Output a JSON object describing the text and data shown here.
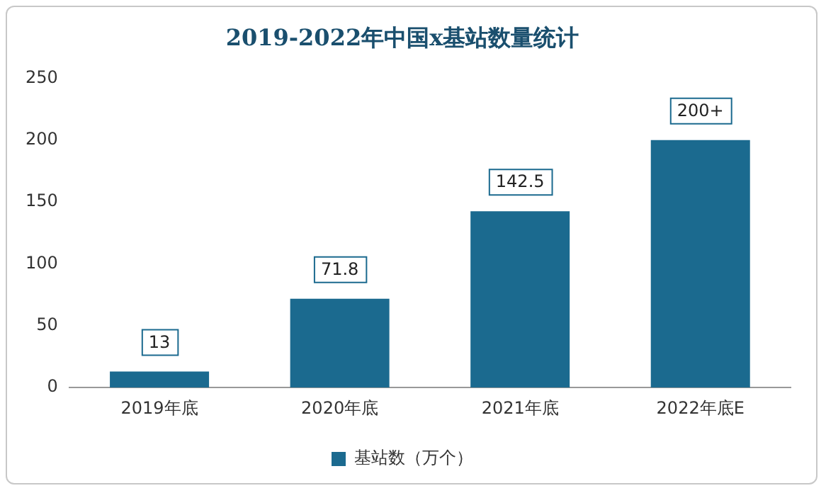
{
  "chart_data": {
    "type": "bar",
    "title": "2019-2022年中国x基站数量统计",
    "categories": [
      "2019年底",
      "2020年底",
      "2021年底",
      "2022年底E"
    ],
    "series": [
      {
        "name": "基站数（万个）",
        "color": "#1b6a8f",
        "values": [
          13,
          71.8,
          142.5,
          200
        ],
        "value_labels": [
          "13",
          "71.8",
          "142.5",
          "200+"
        ]
      }
    ],
    "ylim": [
      0,
      250
    ],
    "yticks": [
      0,
      50,
      100,
      150,
      200,
      250
    ],
    "legend": "bottom"
  }
}
